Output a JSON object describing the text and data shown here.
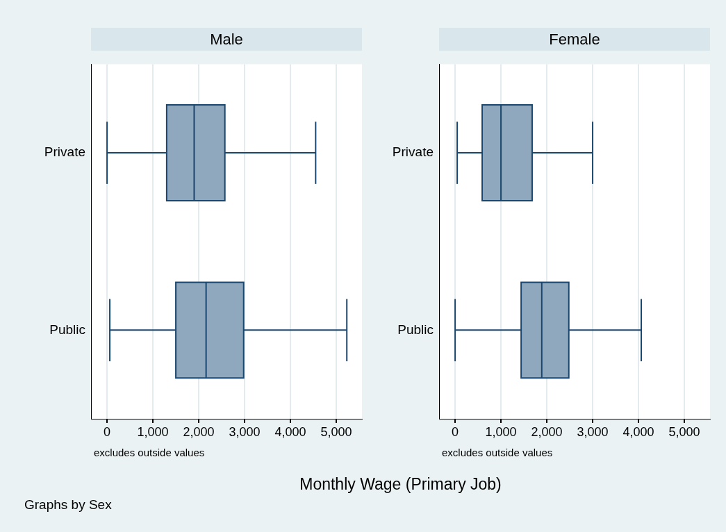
{
  "chart_data": [
    {
      "type": "box",
      "title": "Male",
      "categories": [
        "Private",
        "Public"
      ],
      "orientation": "horizontal",
      "color": "#90a8bd",
      "boxes": [
        {
          "low": 0,
          "q1": 1300,
          "median": 1900,
          "q3": 2570,
          "high": 4550
        },
        {
          "low": 60,
          "q1": 1500,
          "median": 2160,
          "q3": 2980,
          "high": 5230
        }
      ],
      "xlim": [
        -350,
        5560
      ],
      "xticks": [
        0,
        {
          "value": 1000,
          "label": "1,000"
        },
        {
          "value": 2000,
          "label": "2,000"
        },
        {
          "value": 3000,
          "label": "3,000"
        },
        {
          "value": 4000,
          "label": "4,000"
        },
        {
          "value": 5000,
          "label": "5,000"
        }
      ],
      "grid": "x",
      "xlabel": "Monthly Wage (Primary Job)",
      "annotations": [
        "excludes outside values",
        "Graphs by Sex"
      ]
    },
    {
      "type": "box",
      "title": "Female",
      "categories": [
        "Private",
        "Public"
      ],
      "orientation": "horizontal",
      "color": "#90a8bd",
      "boxes": [
        {
          "low": 45,
          "q1": 590,
          "median": 1000,
          "q3": 1680,
          "high": 3000
        },
        {
          "low": 0,
          "q1": 1440,
          "median": 1890,
          "q3": 2480,
          "high": 4060
        }
      ],
      "xlim": [
        -350,
        5560
      ],
      "xticks": [
        0,
        {
          "value": 1000,
          "label": "1,000"
        },
        {
          "value": 2000,
          "label": "2,000"
        },
        {
          "value": 3000,
          "label": "3,000"
        },
        {
          "value": 4000,
          "label": "4,000"
        },
        {
          "value": 5000,
          "label": "5,000"
        }
      ],
      "grid": "x",
      "annotations": [
        "excludes outside values"
      ]
    }
  ]
}
